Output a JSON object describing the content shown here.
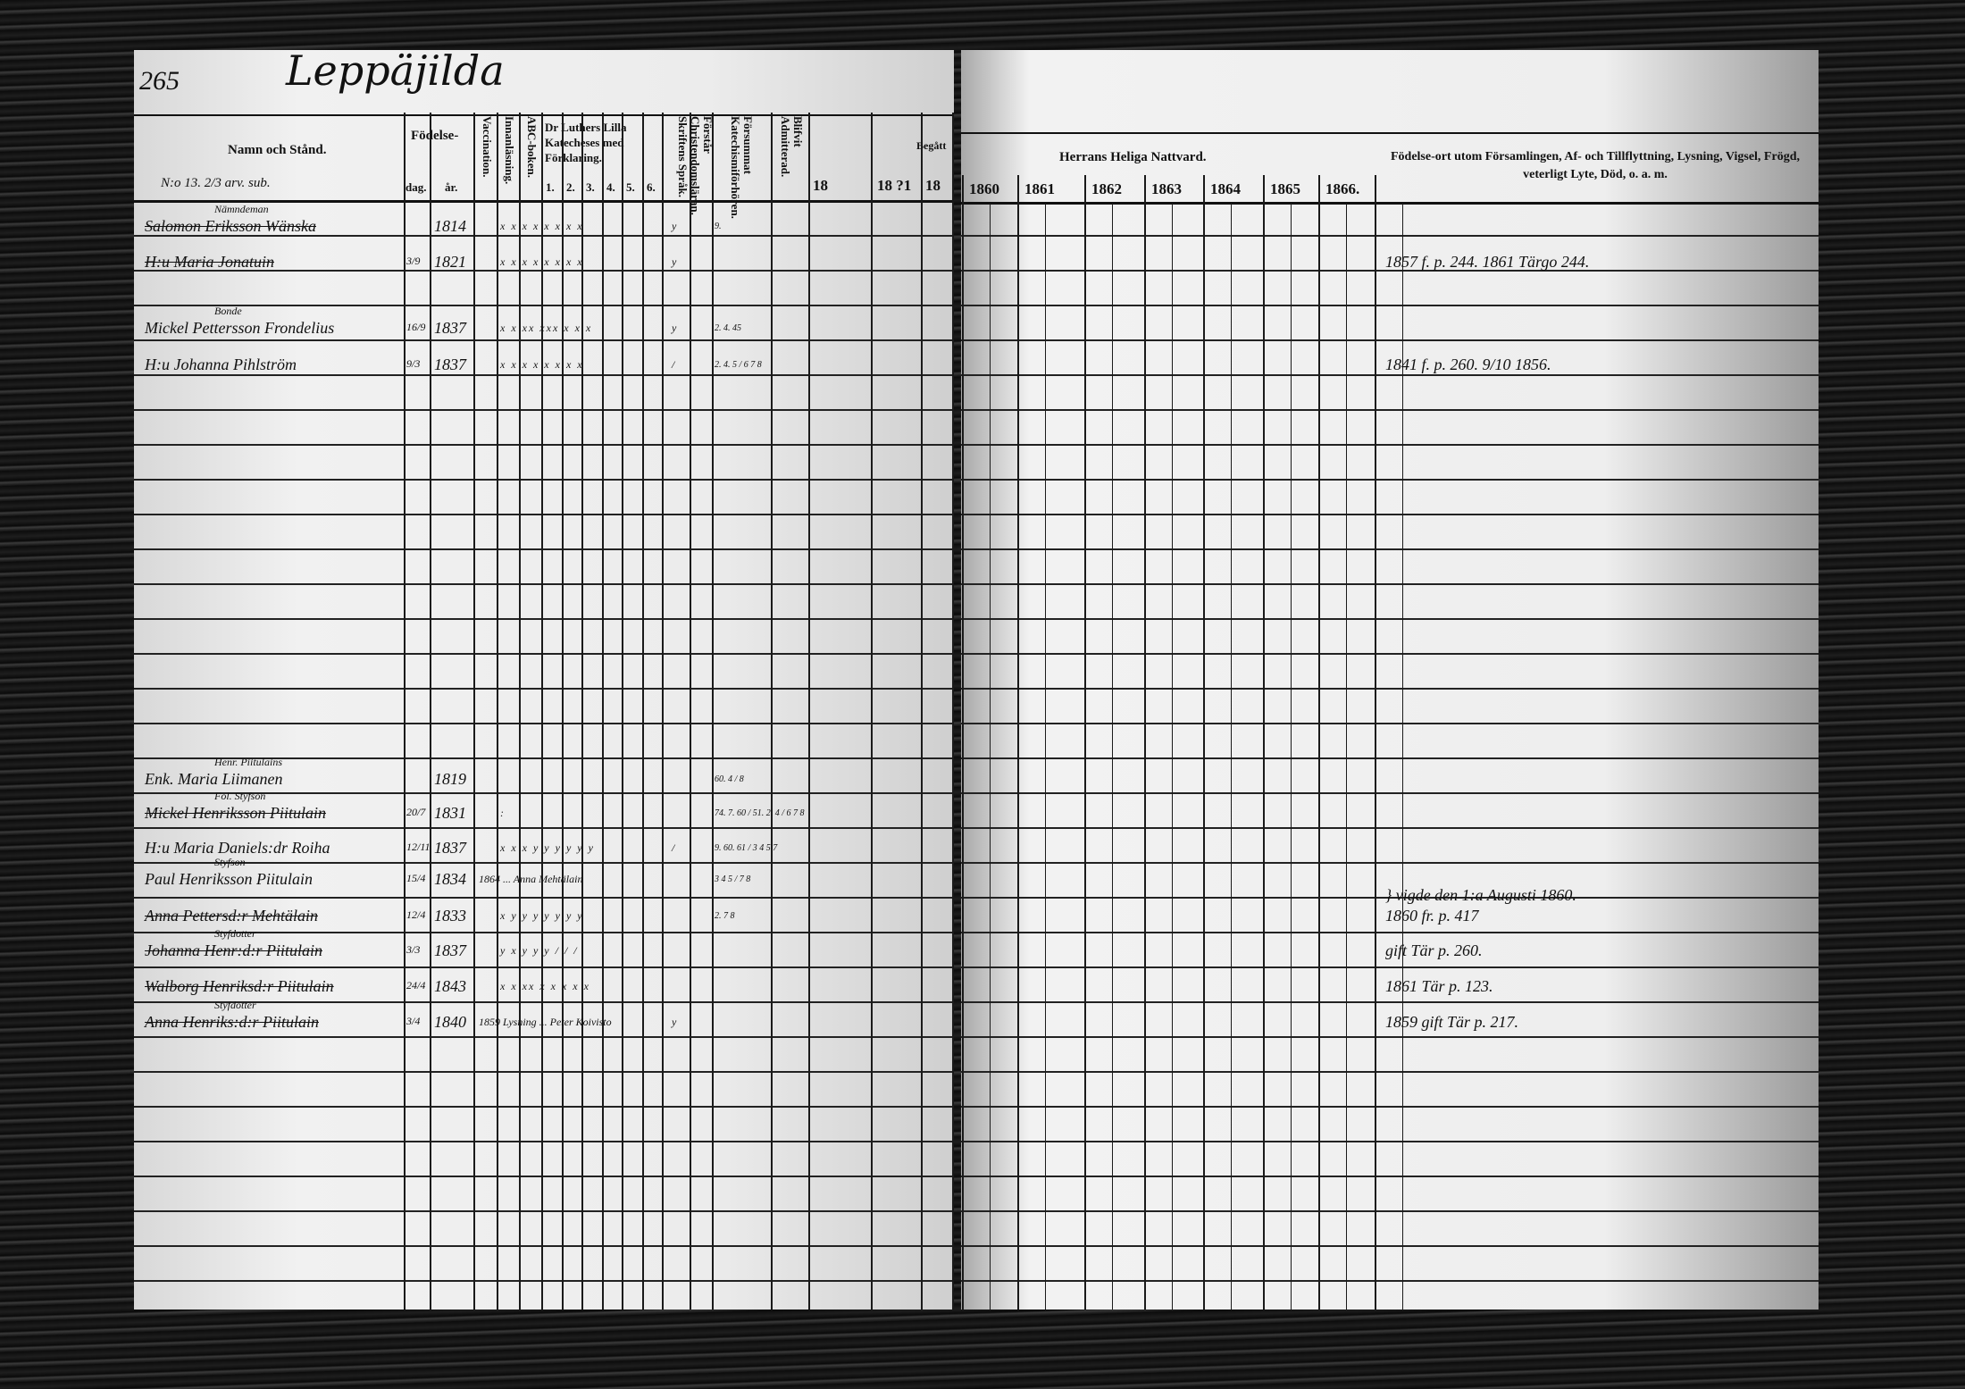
{
  "page_number": "265",
  "village_title": "Leppäjilda",
  "header": {
    "name_col": "Namn och Stånd.",
    "household_note": "N:o 13. 2/3 arv. sub.",
    "birth": "Födelse-",
    "birth_day": "dag.",
    "birth_year": "år.",
    "vaccination": "Vaccination.",
    "reading": "Innanläsning.",
    "abc": "ABC-boken.",
    "catechism": "Dr Luthers Lilla Katecheses med Förklaring.",
    "catechism_parts": [
      "1.",
      "2.",
      "3.",
      "4.",
      "5.",
      "6."
    ],
    "scripture": "Skriftens Språk.",
    "understands": "Förstår Christendomsläran.",
    "missed": "Försummat Katechismiförhören.",
    "admitted": "Blifvit Admitterad.",
    "begun": "Begått",
    "years_left": [
      "18",
      "18 ?1",
      "18"
    ],
    "communion": "Herrans Heliga Nattvard.",
    "years_right": [
      "1860",
      "1861",
      "1862",
      "1863",
      "1864",
      "1865",
      "1866."
    ],
    "remarks": "Födelse-ort utom Församlingen, Af- och Tillflyttning, Lysning, Vigsel, Frögd, veterligt Lyte, Död, o. a. m."
  },
  "entries": [
    {
      "note": "Nämndeman",
      "name": "Salomon Eriksson Wänska",
      "struck": true,
      "day": "",
      "year": "1814",
      "marks": "x x x x x x x x",
      "scripture": "y",
      "missed": "9.",
      "remarks": ""
    },
    {
      "note": "",
      "name": "H:u Maria Jonatuin",
      "struck": true,
      "day": "3/9",
      "year": "1821",
      "marks": "x x x x x x x x",
      "scripture": "y",
      "missed": "",
      "remarks": "1857 f. p. 244. 1861 Tärgo 244."
    },
    {
      "note": "Bonde",
      "name": "Mickel Pettersson Frondelius",
      "struck": false,
      "day": "16/9",
      "year": "1837",
      "marks": "x x xx xxx x x x",
      "scripture": "y",
      "missed": "2. 4. 45",
      "remarks": ""
    },
    {
      "note": "",
      "name": "H:u Johanna Pihlström",
      "struck": false,
      "day": "9/3",
      "year": "1837",
      "marks": "x x x x x x x x",
      "scripture": "/",
      "missed": "2. 4. 5 / 6 7 8",
      "remarks": "1841 f. p. 260. 9/10 1856."
    },
    {
      "note": "Henr. Piitulains",
      "name": "Enk. Maria Liimanen",
      "struck": false,
      "day": "",
      "year": "1819",
      "marks": "",
      "scripture": "",
      "missed": "60. 4 / 8",
      "remarks": ""
    },
    {
      "note": "Fol. Styfson",
      "name": "Mickel Henriksson Piitulain",
      "struck": true,
      "day": "20/7",
      "year": "1831",
      "marks": ":",
      "scripture": "",
      "missed": "74. 7. 60 / 51. 2. 4 / 6 7 8",
      "remarks": ""
    },
    {
      "note": "",
      "name": "H:u Maria Daniels:dr Roiha",
      "struck": false,
      "day": "12/11",
      "year": "1837",
      "marks": "x x x y y y y y y",
      "scripture": "/",
      "missed": "9. 60. 61 / 3 4 5 7",
      "remarks": ""
    },
    {
      "note": "Styfson",
      "name": "Paul Henriksson Piitulain",
      "struck": false,
      "day": "15/4",
      "year": "1834",
      "marks": "1864 ... Anna Mehtälain",
      "scripture": "",
      "missed": "3 4 5 / 7 8",
      "remarks": "} vigde den 1:a Augusti 1860."
    },
    {
      "note": "",
      "name": "Anna Pettersd:r Mehtälain",
      "struck": true,
      "day": "12/4",
      "year": "1833",
      "marks": "x y y y y y y y",
      "scripture": "",
      "missed": "2. 7 8",
      "remarks": "1860 fr. p. 417"
    },
    {
      "note": "Styfdotter",
      "name": "Johanna Henr:d:r Piitulain",
      "struck": true,
      "day": "3/3",
      "year": "1837",
      "marks": "y x y y y / / /",
      "scripture": "",
      "missed": "",
      "remarks": "gift Tär p. 260."
    },
    {
      "note": "",
      "name": "Walborg Henriksd:r Piitulain",
      "struck": true,
      "day": "24/4",
      "year": "1843",
      "marks": "x x xx x x x x x",
      "scripture": "",
      "missed": "",
      "remarks": "1861 Tär p. 123."
    },
    {
      "note": "Styfdotter",
      "name": "Anna Henriks:d:r Piitulain",
      "struck": true,
      "day": "3/4",
      "year": "1840",
      "marks": "1859 Lysning ... Peter Koivisto",
      "scripture": "y",
      "missed": "",
      "remarks": "1859 gift Tär p. 217."
    }
  ]
}
